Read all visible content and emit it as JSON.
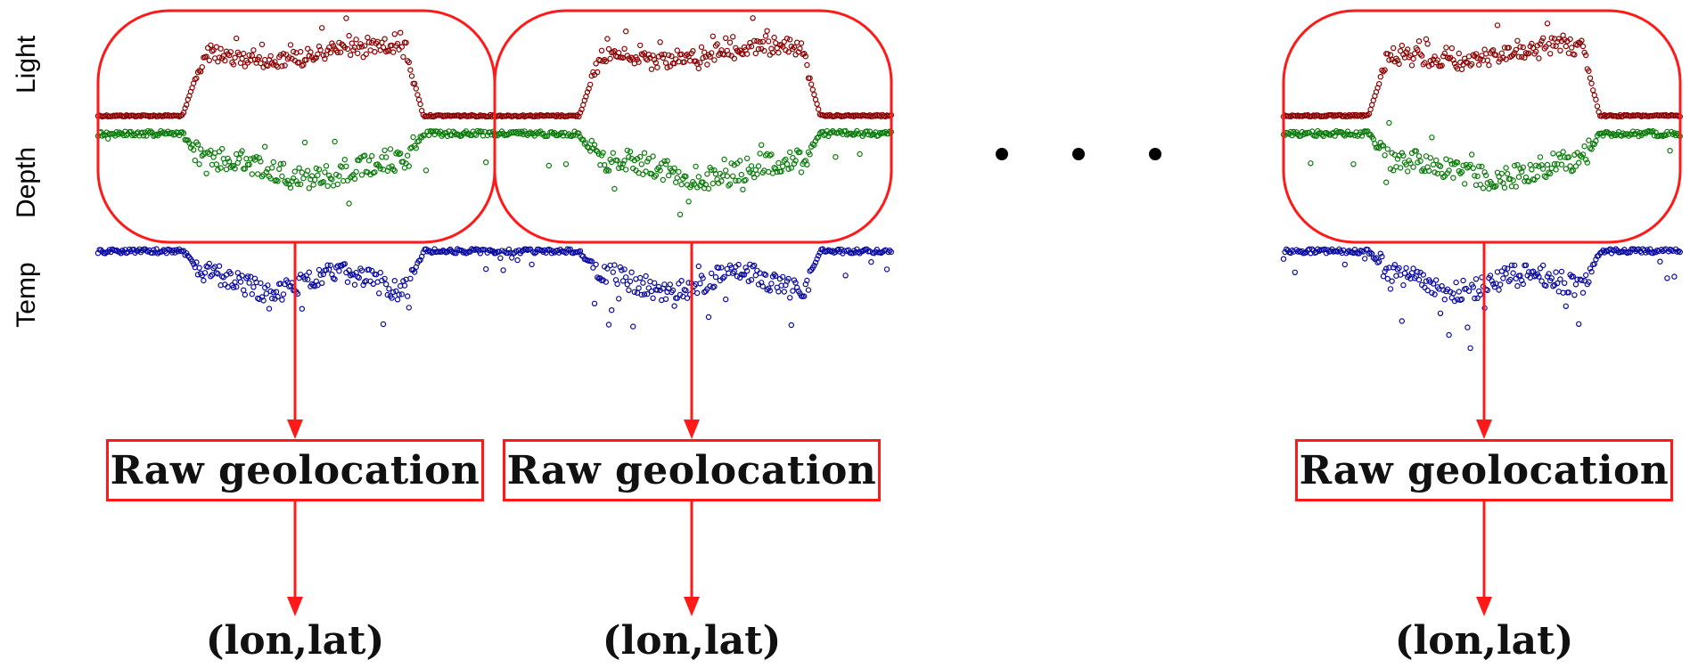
{
  "track_labels": [
    "Light",
    "Depth",
    "Temp"
  ],
  "colors": {
    "light": "#8b0000",
    "depth": "#0a7a0a",
    "temp": "#0a0a9e",
    "window": "#ff1a1a",
    "arrow": "#ff1a1a"
  },
  "windows": [
    {
      "box_label": "Raw geolocation",
      "output_label": "(lon,lat)"
    },
    {
      "box_label": "Raw geolocation",
      "output_label": "(lon,lat)"
    },
    {
      "box_label": "Raw geolocation",
      "output_label": "(lon,lat)"
    }
  ],
  "ellipsis": "• • •"
}
